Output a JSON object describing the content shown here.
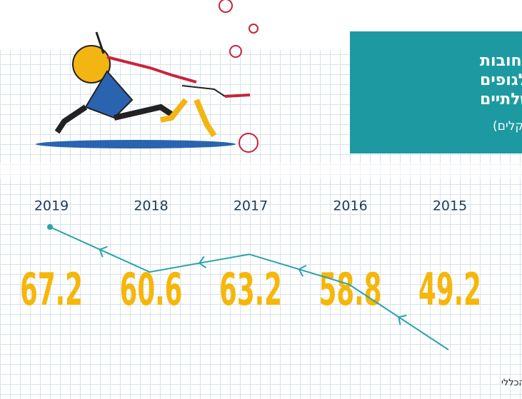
{
  "chart_data": {
    "type": "line",
    "title": [
      "סך החובות",
      "לגופים",
      "ממשלתיים"
    ],
    "subtitle": "(במיליארדי שקלים)",
    "source": "מקור: דוח החשב הכללי",
    "categories": [
      "2015",
      "2016",
      "2017",
      "2018",
      "2019"
    ],
    "values": [
      49.2,
      58.8,
      63.2,
      60.6,
      67.2
    ],
    "color": "#2aa3ab",
    "label_color": "#f6b60a"
  }
}
